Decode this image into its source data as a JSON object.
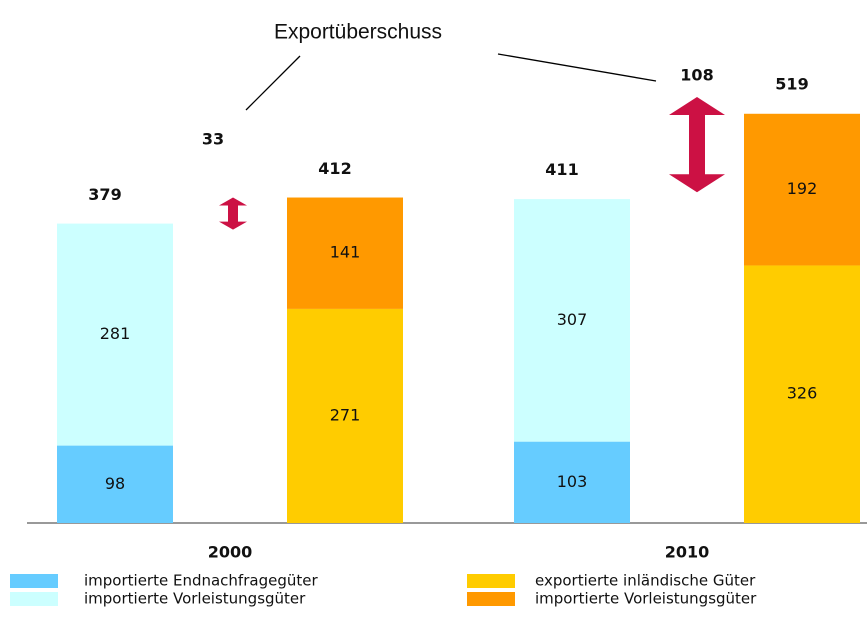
{
  "chart_data": {
    "type": "bar",
    "categories": [
      "2000",
      "2010"
    ],
    "series": [
      {
        "name": "importierte Endnachfragegüter",
        "color": "#66ccff",
        "stack": 0,
        "values": [
          98,
          103
        ]
      },
      {
        "name": "importierte Vorleistungsgüter",
        "color": "#ccffff",
        "stack": 0,
        "values": [
          281,
          307
        ]
      },
      {
        "name": "exportierte inländische Güter",
        "color": "#ffcc00",
        "stack": 1,
        "values": [
          271,
          326
        ]
      },
      {
        "name": "importierte Vorleistungsgüter",
        "color": "#ff9900",
        "stack": 1,
        "values": [
          141,
          192
        ]
      }
    ],
    "totals": [
      [
        379,
        412
      ],
      [
        411,
        519
      ]
    ],
    "annotation": {
      "text": "Exportüberschuss",
      "values": [
        33,
        108
      ],
      "color": "#cc1144"
    }
  }
}
